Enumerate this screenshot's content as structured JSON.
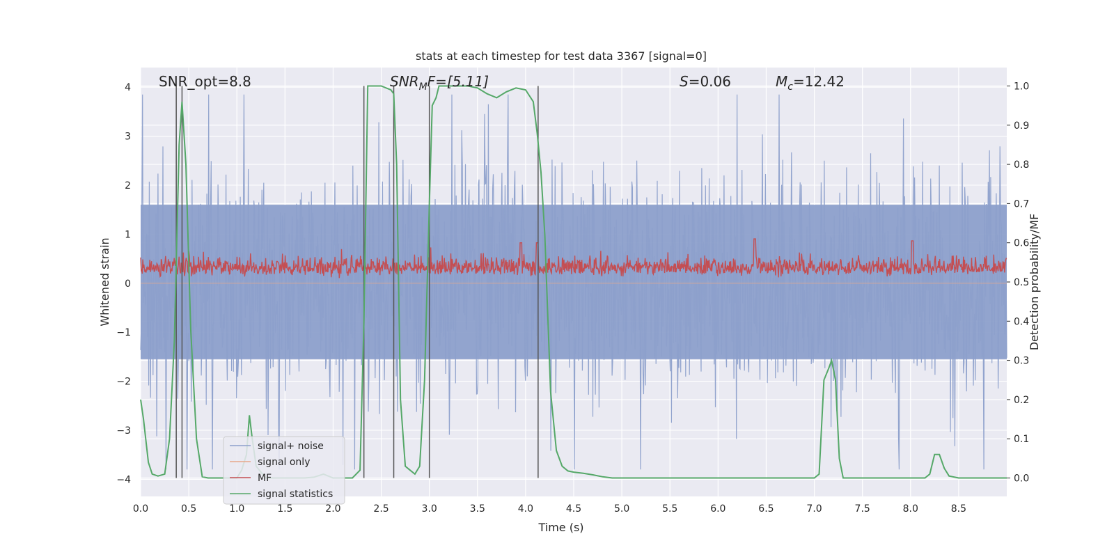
{
  "chart_data": {
    "type": "line",
    "title": "stats at each timestep for test data 3367 [signal=0]",
    "xlabel": "Time (s)",
    "ylabel_left": "Whitened strain",
    "ylabel_right": "Detection probability/MF",
    "xlim": [
      0.0,
      9.0
    ],
    "ylim_left": [
      -4.35,
      4.4
    ],
    "ylim_right": [
      -0.047,
      1.047
    ],
    "grid": true,
    "x_ticks": [
      "0.0",
      "0.5",
      "1.0",
      "1.5",
      "2.0",
      "2.5",
      "3.0",
      "3.5",
      "4.0",
      "4.5",
      "5.0",
      "5.5",
      "6.0",
      "6.5",
      "7.0",
      "7.5",
      "8.0",
      "8.5"
    ],
    "x_tick_values": [
      0.0,
      0.5,
      1.0,
      1.5,
      2.0,
      2.5,
      3.0,
      3.5,
      4.0,
      4.5,
      5.0,
      5.5,
      6.0,
      6.5,
      7.0,
      7.5,
      8.0,
      8.5
    ],
    "y_left_ticks": [
      "4",
      "3",
      "2",
      "1",
      "0",
      "−1",
      "−2",
      "−3",
      "−4"
    ],
    "y_left_tick_values": [
      4,
      3,
      2,
      1,
      0,
      -1,
      -2,
      -3,
      -4
    ],
    "y_right_ticks": [
      "1.0",
      "0.9",
      "0.8",
      "0.7",
      "0.6",
      "0.5",
      "0.4",
      "0.3",
      "0.2",
      "0.1",
      "0.0"
    ],
    "y_right_tick_values": [
      1.0,
      0.9,
      0.8,
      0.7,
      0.6,
      0.5,
      0.4,
      0.3,
      0.2,
      0.1,
      0.0
    ],
    "annotations": {
      "snr_opt": "SNR_opt=8.8",
      "snr_mf_main": "SNR",
      "snr_mf_sub": "M",
      "snr_mf_rest": "F=[5.11]",
      "s_italic": "S",
      "s_rest": "=0.06",
      "mc_main": "M",
      "mc_sub": "c",
      "mc_rest": "=12.42"
    },
    "vertical_markers": [
      0.37,
      0.43,
      2.32,
      2.63,
      3.0,
      4.13
    ],
    "series": [
      {
        "name": "signal+ noise",
        "color": "#8da0cb",
        "axis": "left",
        "style": "noise",
        "envelope_upper": 1.6,
        "envelope_lower": -1.55,
        "peak_range": [
          -3.8,
          3.85
        ]
      },
      {
        "name": "signal only",
        "color": "#e8a889",
        "axis": "left",
        "x": [
          0.0,
          9.0
        ],
        "y": [
          0.0,
          0.0
        ]
      },
      {
        "name": "MF",
        "color": "#c44e52",
        "axis": "right",
        "style": "noise",
        "base": 0.53,
        "spikes": [
          [
            3.95,
            0.6
          ],
          [
            4.12,
            0.6
          ],
          [
            6.38,
            0.61
          ],
          [
            8.02,
            0.605
          ]
        ]
      },
      {
        "name": "signal statistics",
        "color": "#55a868",
        "axis": "right",
        "x": [
          0.0,
          0.03,
          0.08,
          0.12,
          0.18,
          0.25,
          0.3,
          0.35,
          0.4,
          0.43,
          0.47,
          0.52,
          0.58,
          0.64,
          0.7,
          0.8,
          0.9,
          1.0,
          1.05,
          1.1,
          1.13,
          1.16,
          1.2,
          1.3,
          1.4,
          1.5,
          1.6,
          1.7,
          1.8,
          1.9,
          2.0,
          2.1,
          2.2,
          2.28,
          2.32,
          2.36,
          2.4,
          2.5,
          2.6,
          2.63,
          2.66,
          2.7,
          2.75,
          2.8,
          2.85,
          2.9,
          2.95,
          3.0,
          3.03,
          3.07,
          3.1,
          3.2,
          3.3,
          3.4,
          3.5,
          3.6,
          3.7,
          3.8,
          3.9,
          4.0,
          4.08,
          4.12,
          4.16,
          4.2,
          4.26,
          4.32,
          4.38,
          4.44,
          4.5,
          4.6,
          4.7,
          4.8,
          4.9,
          5.0,
          6.0,
          6.5,
          6.9,
          7.0,
          7.05,
          7.1,
          7.15,
          7.18,
          7.22,
          7.26,
          7.3,
          7.4,
          7.5,
          7.8,
          8.0,
          8.15,
          8.2,
          8.25,
          8.3,
          8.35,
          8.4,
          8.5,
          9.0
        ],
        "y": [
          0.2,
          0.15,
          0.04,
          0.01,
          0.005,
          0.01,
          0.1,
          0.35,
          0.85,
          0.96,
          0.8,
          0.38,
          0.1,
          0.003,
          0.0,
          0.0,
          0.0,
          0.0,
          0.02,
          0.06,
          0.16,
          0.1,
          0.03,
          0.0,
          0.0,
          0.0,
          0.0,
          0.0,
          0.002,
          0.01,
          0.0,
          0.0,
          0.0,
          0.02,
          0.4,
          1.0,
          1.0,
          1.0,
          0.99,
          0.98,
          0.8,
          0.2,
          0.03,
          0.02,
          0.01,
          0.03,
          0.25,
          0.7,
          0.95,
          0.97,
          1.0,
          1.0,
          1.0,
          1.0,
          0.995,
          0.98,
          0.97,
          0.985,
          0.995,
          0.99,
          0.96,
          0.88,
          0.78,
          0.62,
          0.22,
          0.07,
          0.03,
          0.018,
          0.015,
          0.012,
          0.008,
          0.003,
          0.0,
          0.0,
          0.0,
          0.0,
          0.0,
          0.0,
          0.01,
          0.25,
          0.28,
          0.3,
          0.25,
          0.05,
          0.0,
          0.0,
          0.0,
          0.0,
          0.0,
          0.0,
          0.01,
          0.06,
          0.06,
          0.025,
          0.005,
          0.0,
          0.0
        ]
      }
    ],
    "legend": {
      "placement": "lower-left",
      "entries": [
        "signal+ noise",
        "signal only",
        "MF",
        "signal statistics"
      ]
    }
  }
}
